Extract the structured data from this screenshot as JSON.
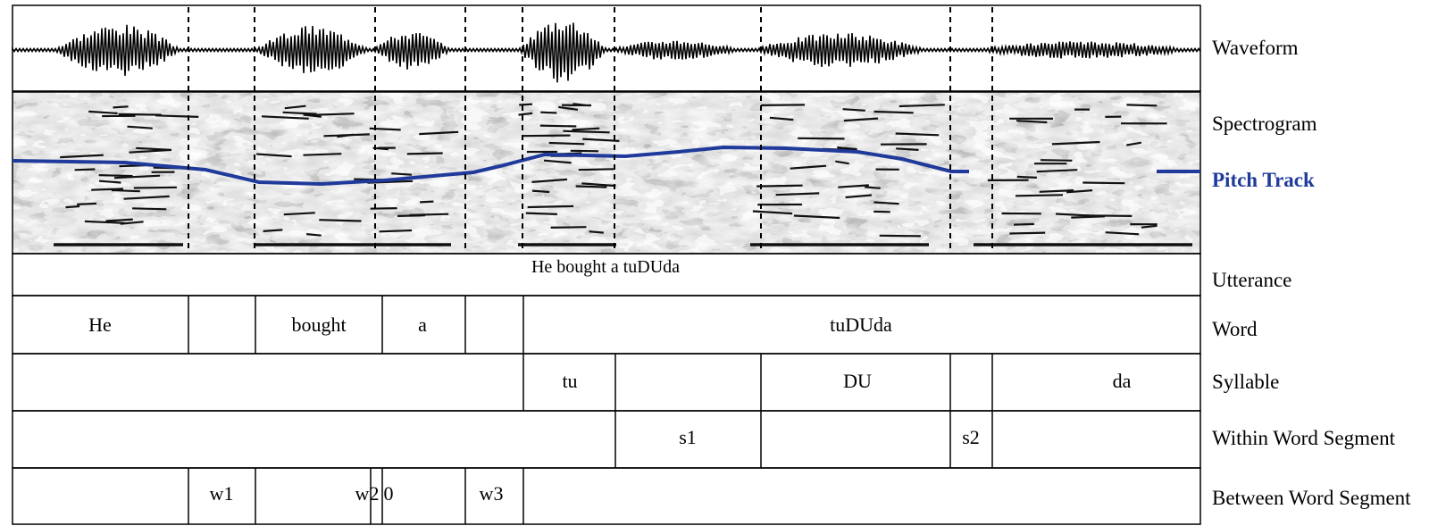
{
  "tiers": {
    "waveform": "Waveform",
    "spectrogram": "Spectrogram",
    "pitch_track": "Pitch Track",
    "utterance": "Utterance",
    "word": "Word",
    "syllable": "Syllable",
    "within_word_segment": "Within Word Segment",
    "between_word_segment": "Between Word Segment"
  },
  "utterance_text": "He bought a tuDUda",
  "words": [
    "He",
    "bought",
    "a",
    "tuDUda"
  ],
  "syllables": [
    "tu",
    "DU",
    "da"
  ],
  "within_segments": [
    "s1",
    "s2"
  ],
  "between_segments": [
    "w1",
    "w2",
    "0",
    "w3"
  ],
  "colors": {
    "pitch": "#1f3a9a",
    "grid": "#000000"
  }
}
